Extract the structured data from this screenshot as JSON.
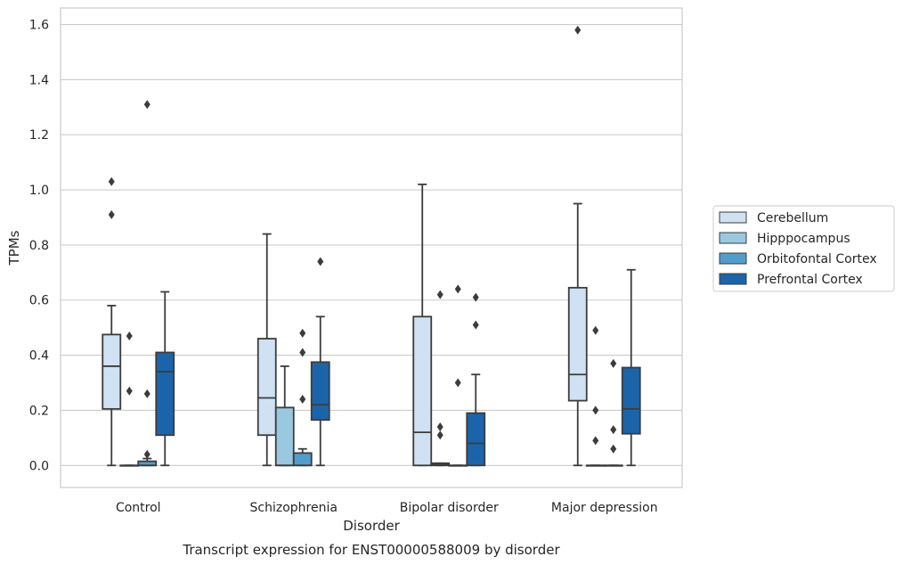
{
  "chart_data": {
    "type": "box",
    "title": "Transcript expression for ENST00000588009 by disorder",
    "xlabel": "Disorder",
    "ylabel": "TPMs",
    "categories": [
      "Control",
      "Schizophrenia",
      "Bipolar disorder",
      "Major depression"
    ],
    "ylim": [
      -0.08,
      1.66
    ],
    "yticks": [
      0.0,
      0.2,
      0.4,
      0.6,
      0.8,
      1.0,
      1.2,
      1.4,
      1.6
    ],
    "ytick_labels": [
      "0.0",
      "0.2",
      "0.4",
      "0.6",
      "0.8",
      "1.0",
      "1.2",
      "1.4",
      "1.6"
    ],
    "grid": true,
    "legend_position": "right, outside plot, vertically centered",
    "series": [
      {
        "name": "Cerebellum",
        "color": "#cfe1f2",
        "boxes": [
          {
            "whisker_low": 0.0,
            "q1": 0.205,
            "median": 0.36,
            "q3": 0.475,
            "whisker_high": 0.58,
            "outliers": [
              0.91,
              1.03
            ]
          },
          {
            "whisker_low": 0.0,
            "q1": 0.11,
            "median": 0.245,
            "q3": 0.46,
            "whisker_high": 0.84,
            "outliers": []
          },
          {
            "whisker_low": 0.0,
            "q1": 0.0,
            "median": 0.12,
            "q3": 0.54,
            "whisker_high": 1.02,
            "outliers": []
          },
          {
            "whisker_low": 0.0,
            "q1": 0.235,
            "median": 0.33,
            "q3": 0.645,
            "whisker_high": 0.95,
            "outliers": [
              1.58
            ]
          }
        ]
      },
      {
        "name": "Hipppocampus",
        "color": "#9ac8e0",
        "boxes": [
          {
            "whisker_low": 0.0,
            "q1": 0.0,
            "median": 0.0,
            "q3": 0.0,
            "whisker_high": 0.0,
            "outliers": [
              0.27,
              0.47
            ]
          },
          {
            "whisker_low": 0.0,
            "q1": 0.0,
            "median": 0.0,
            "q3": 0.21,
            "whisker_high": 0.36,
            "outliers": []
          },
          {
            "whisker_low": 0.0,
            "q1": 0.0,
            "median": 0.005,
            "q3": 0.008,
            "whisker_high": 0.008,
            "outliers": [
              0.11,
              0.14,
              0.62
            ]
          },
          {
            "whisker_low": 0.0,
            "q1": 0.0,
            "median": 0.0,
            "q3": 0.0,
            "whisker_high": 0.0,
            "outliers": [
              0.09,
              0.2,
              0.49
            ]
          }
        ]
      },
      {
        "name": "Orbitofontal Cortex",
        "color": "#529dcc",
        "boxes": [
          {
            "whisker_low": 0.0,
            "q1": 0.0,
            "median": 0.0,
            "q3": 0.015,
            "whisker_high": 0.025,
            "outliers": [
              0.04,
              0.26,
              1.31
            ]
          },
          {
            "whisker_low": 0.0,
            "q1": 0.0,
            "median": 0.0,
            "q3": 0.045,
            "whisker_high": 0.06,
            "outliers": [
              0.24,
              0.41,
              0.48
            ]
          },
          {
            "whisker_low": 0.0,
            "q1": 0.0,
            "median": 0.0,
            "q3": 0.0,
            "whisker_high": 0.0,
            "outliers": [
              0.3,
              0.64
            ]
          },
          {
            "whisker_low": 0.0,
            "q1": 0.0,
            "median": 0.0,
            "q3": 0.0,
            "whisker_high": 0.0,
            "outliers": [
              0.06,
              0.13,
              0.37
            ]
          }
        ]
      },
      {
        "name": "Prefrontal Cortex",
        "color": "#1c64aa",
        "boxes": [
          {
            "whisker_low": 0.0,
            "q1": 0.11,
            "median": 0.34,
            "q3": 0.41,
            "whisker_high": 0.63,
            "outliers": []
          },
          {
            "whisker_low": 0.0,
            "q1": 0.165,
            "median": 0.22,
            "q3": 0.375,
            "whisker_high": 0.54,
            "outliers": [
              0.74
            ]
          },
          {
            "whisker_low": 0.0,
            "q1": 0.0,
            "median": 0.08,
            "q3": 0.19,
            "whisker_high": 0.33,
            "outliers": [
              0.51,
              0.61
            ]
          },
          {
            "whisker_low": 0.0,
            "q1": 0.115,
            "median": 0.205,
            "q3": 0.355,
            "whisker_high": 0.71,
            "outliers": []
          }
        ]
      }
    ]
  },
  "colors": {
    "box_edge": "#3c3c3c",
    "grid": "#cccccc",
    "frame": "#cccccc",
    "text": "#262626"
  }
}
